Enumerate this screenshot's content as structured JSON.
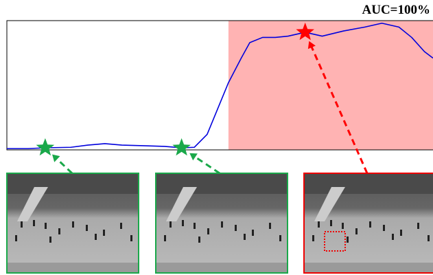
{
  "chart_data": {
    "type": "line",
    "title": "AUC=100%",
    "x": [
      0,
      5,
      9,
      15,
      19,
      23,
      27,
      32,
      37,
      41,
      44,
      47,
      50,
      52,
      55,
      57,
      60,
      63,
      66,
      70,
      74,
      79,
      84,
      88,
      92,
      95,
      98,
      100
    ],
    "values": [
      0.01,
      0.01,
      0.016,
      0.02,
      0.037,
      0.048,
      0.037,
      0.032,
      0.027,
      0.016,
      0.02,
      0.12,
      0.36,
      0.52,
      0.71,
      0.83,
      0.87,
      0.87,
      0.88,
      0.91,
      0.88,
      0.92,
      0.95,
      0.98,
      0.95,
      0.87,
      0.76,
      0.71
    ],
    "color": "#0000dd",
    "xlim": [
      0,
      100
    ],
    "ylim": [
      0,
      1
    ],
    "anomaly_span": [
      52,
      100
    ],
    "anomaly_color": "#ffb3b3",
    "stars": {
      "x": [
        9,
        41,
        70
      ],
      "y": [
        0.016,
        0.016,
        0.91
      ],
      "colors": [
        "#1aa84a",
        "#1aa84a",
        "#ff0000"
      ]
    }
  }
}
